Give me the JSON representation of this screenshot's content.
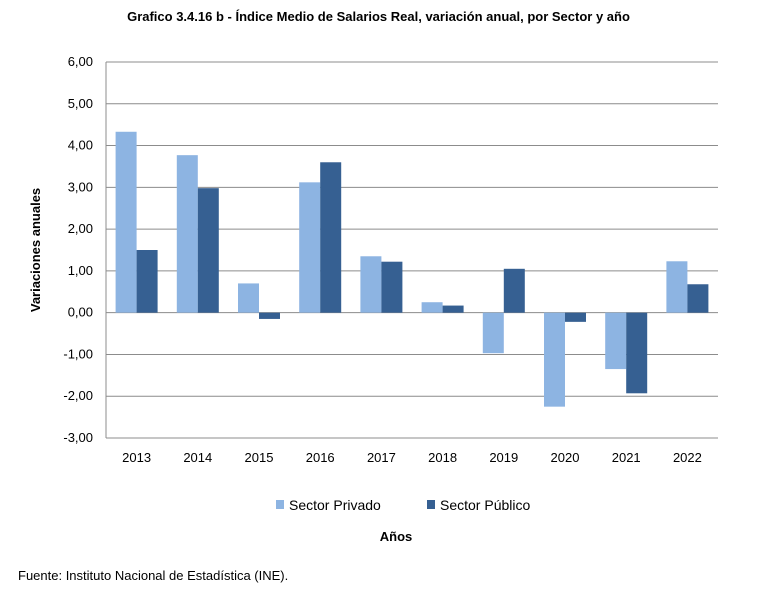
{
  "chart_data": {
    "type": "bar",
    "title": "Grafico 3.4.16 b - Índice Medio de Salarios Real, variación anual, por Sector y año",
    "xlabel": "Años",
    "ylabel": "Variaciones anuales",
    "categories": [
      "2013",
      "2014",
      "2015",
      "2016",
      "2017",
      "2018",
      "2019",
      "2020",
      "2021",
      "2022"
    ],
    "series": [
      {
        "name": "Sector Privado",
        "color": "#8DB4E2",
        "values": [
          4.33,
          3.77,
          0.7,
          3.12,
          1.35,
          0.25,
          -0.97,
          -2.25,
          -1.35,
          1.23
        ]
      },
      {
        "name": "Sector Público",
        "color": "#366092",
        "values": [
          1.5,
          2.98,
          -0.15,
          3.6,
          1.22,
          0.17,
          1.05,
          -0.22,
          -1.93,
          0.68
        ]
      }
    ],
    "ylim": [
      -3,
      6
    ],
    "yticks": [
      "6,00",
      "5,00",
      "4,00",
      "3,00",
      "2,00",
      "1,00",
      "0,00",
      "-1,00",
      "-2,00",
      "-3,00"
    ],
    "grid": true,
    "legend_position": "bottom"
  },
  "source": "Fuente: Instituto Nacional de Estadística (INE)."
}
